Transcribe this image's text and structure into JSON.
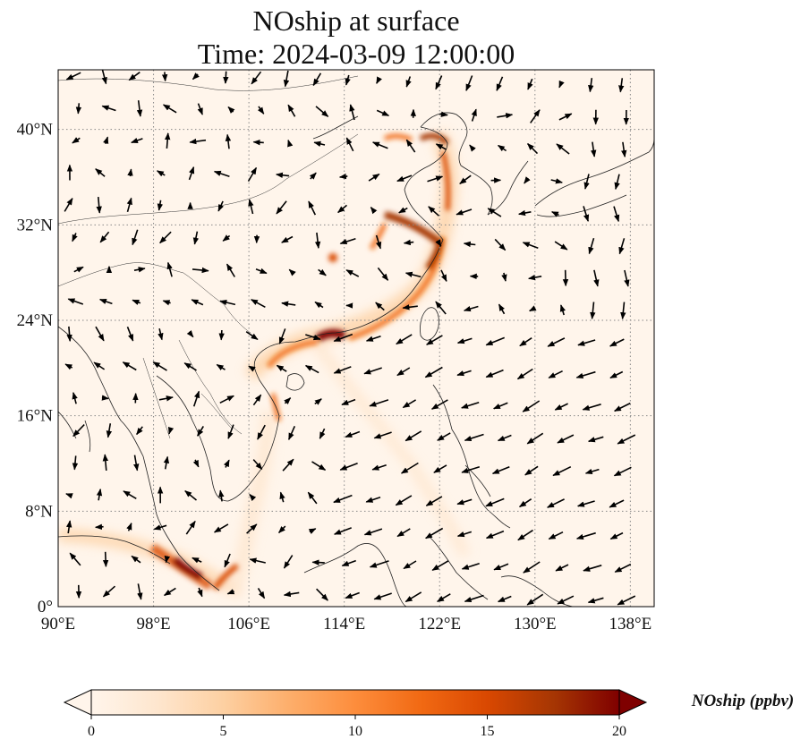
{
  "title": {
    "line1": "NOship at surface",
    "line2": "Time: 2024-03-09 12:00:00"
  },
  "map": {
    "lon_range": [
      90,
      140
    ],
    "lat_range": [
      0,
      45
    ],
    "lon_ticks": [
      90,
      98,
      106,
      114,
      122,
      130,
      138
    ],
    "lat_ticks": [
      0,
      8,
      16,
      24,
      32,
      40
    ],
    "lon_tick_labels": [
      "90°E",
      "98°E",
      "106°E",
      "114°E",
      "122°E",
      "130°E",
      "138°E"
    ],
    "lat_tick_labels": [
      "0°",
      "8°N",
      "16°N",
      "24°N",
      "32°N",
      "40°N"
    ],
    "gridlines": true
  },
  "colorbar": {
    "label": "NOship (ppbv)",
    "ticks": [
      "0",
      "5",
      "10",
      "15",
      "20"
    ],
    "min": 0,
    "max": 20,
    "extend": "both",
    "colormap": [
      "#fff5eb",
      "#fee6ce",
      "#fdd0a2",
      "#fdae6b",
      "#fd8d3c",
      "#f16913",
      "#d94801",
      "#a63603",
      "#7f0000"
    ]
  }
}
